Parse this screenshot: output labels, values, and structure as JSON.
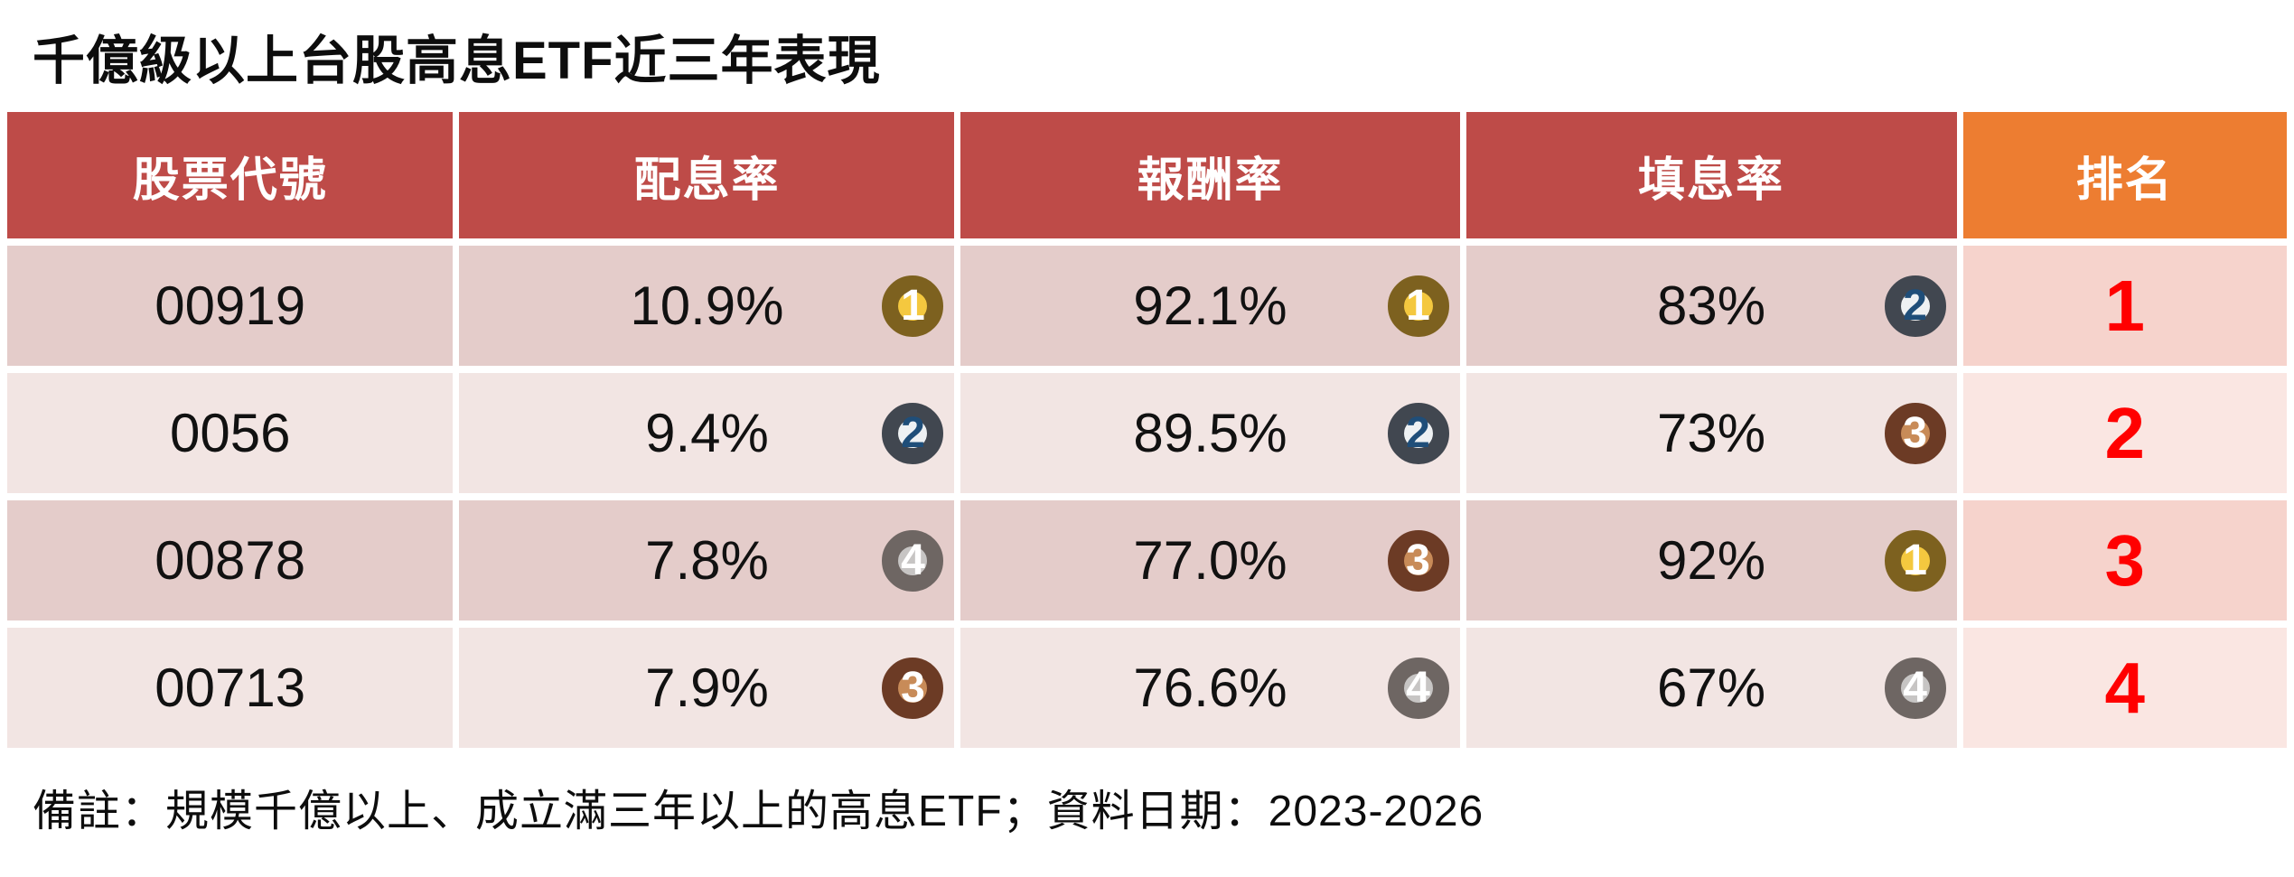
{
  "title": "千億級以上台股高息ETF近三年表現",
  "footnote": "備註：規模千億以上、成立滿三年以上的高息ETF；資料日期：2023-2026",
  "table": {
    "headers": [
      "股票代號",
      "配息率",
      "報酬率",
      "填息率",
      "排名"
    ],
    "rows": [
      {
        "code": "00919",
        "dividend_yield": "10.9%",
        "dividend_medal": "1",
        "return_rate": "92.1%",
        "return_medal": "1",
        "fill_rate": "83%",
        "fill_medal": "2",
        "overall_rank": "1"
      },
      {
        "code": "0056",
        "dividend_yield": "9.4%",
        "dividend_medal": "2",
        "return_rate": "89.5%",
        "return_medal": "2",
        "fill_rate": "73%",
        "fill_medal": "3",
        "overall_rank": "2"
      },
      {
        "code": "00878",
        "dividend_yield": "7.8%",
        "dividend_medal": "4",
        "return_rate": "77.0%",
        "return_medal": "3",
        "fill_rate": "92%",
        "fill_medal": "1",
        "overall_rank": "3"
      },
      {
        "code": "00713",
        "dividend_yield": "7.9%",
        "dividend_medal": "3",
        "return_rate": "76.6%",
        "return_medal": "4",
        "fill_rate": "67%",
        "fill_medal": "4",
        "overall_rank": "4"
      }
    ]
  },
  "chart_data": {
    "type": "table",
    "title": "千億級以上台股高息ETF近三年表現",
    "columns": [
      "股票代號",
      "配息率",
      "報酬率",
      "填息率",
      "排名"
    ],
    "rows": [
      [
        "00919",
        "10.9%",
        "92.1%",
        "83%",
        "1"
      ],
      [
        "0056",
        "9.4%",
        "89.5%",
        "73%",
        "2"
      ],
      [
        "00878",
        "7.8%",
        "77.0%",
        "92%",
        "3"
      ],
      [
        "00713",
        "7.9%",
        "76.6%",
        "67%",
        "4"
      ]
    ],
    "medal_ranks_per_column": {
      "配息率": [
        1,
        2,
        4,
        3
      ],
      "報酬率": [
        1,
        2,
        3,
        4
      ],
      "填息率": [
        2,
        3,
        1,
        4
      ]
    },
    "note": "備註：規模千億以上、成立滿三年以上的高息ETF；資料日期：2023-2026"
  },
  "colors": {
    "header_bg": "#BE4B48",
    "rank_header_bg": "#ED7D31",
    "row_odd_bg": "#E4CCCA",
    "row_even_bg": "#F2E5E3",
    "rank_cell_odd_bg": "#F6D3CC",
    "rank_cell_even_bg": "#FAE6E2",
    "rank_number": "#FF0000",
    "medal_gold_fill": "#F4C83F",
    "medal_gold_ring": "#7D611F",
    "medal_silver_fill": "#EEF1F3",
    "medal_silver_ring": "#414750",
    "medal_silver_number": "#1F4E79",
    "medal_bronze_fill": "#C88B58",
    "medal_bronze_ring": "#6C3B25",
    "medal_fourth_fill": "#C7C5C4",
    "medal_fourth_ring": "#6E6663"
  }
}
